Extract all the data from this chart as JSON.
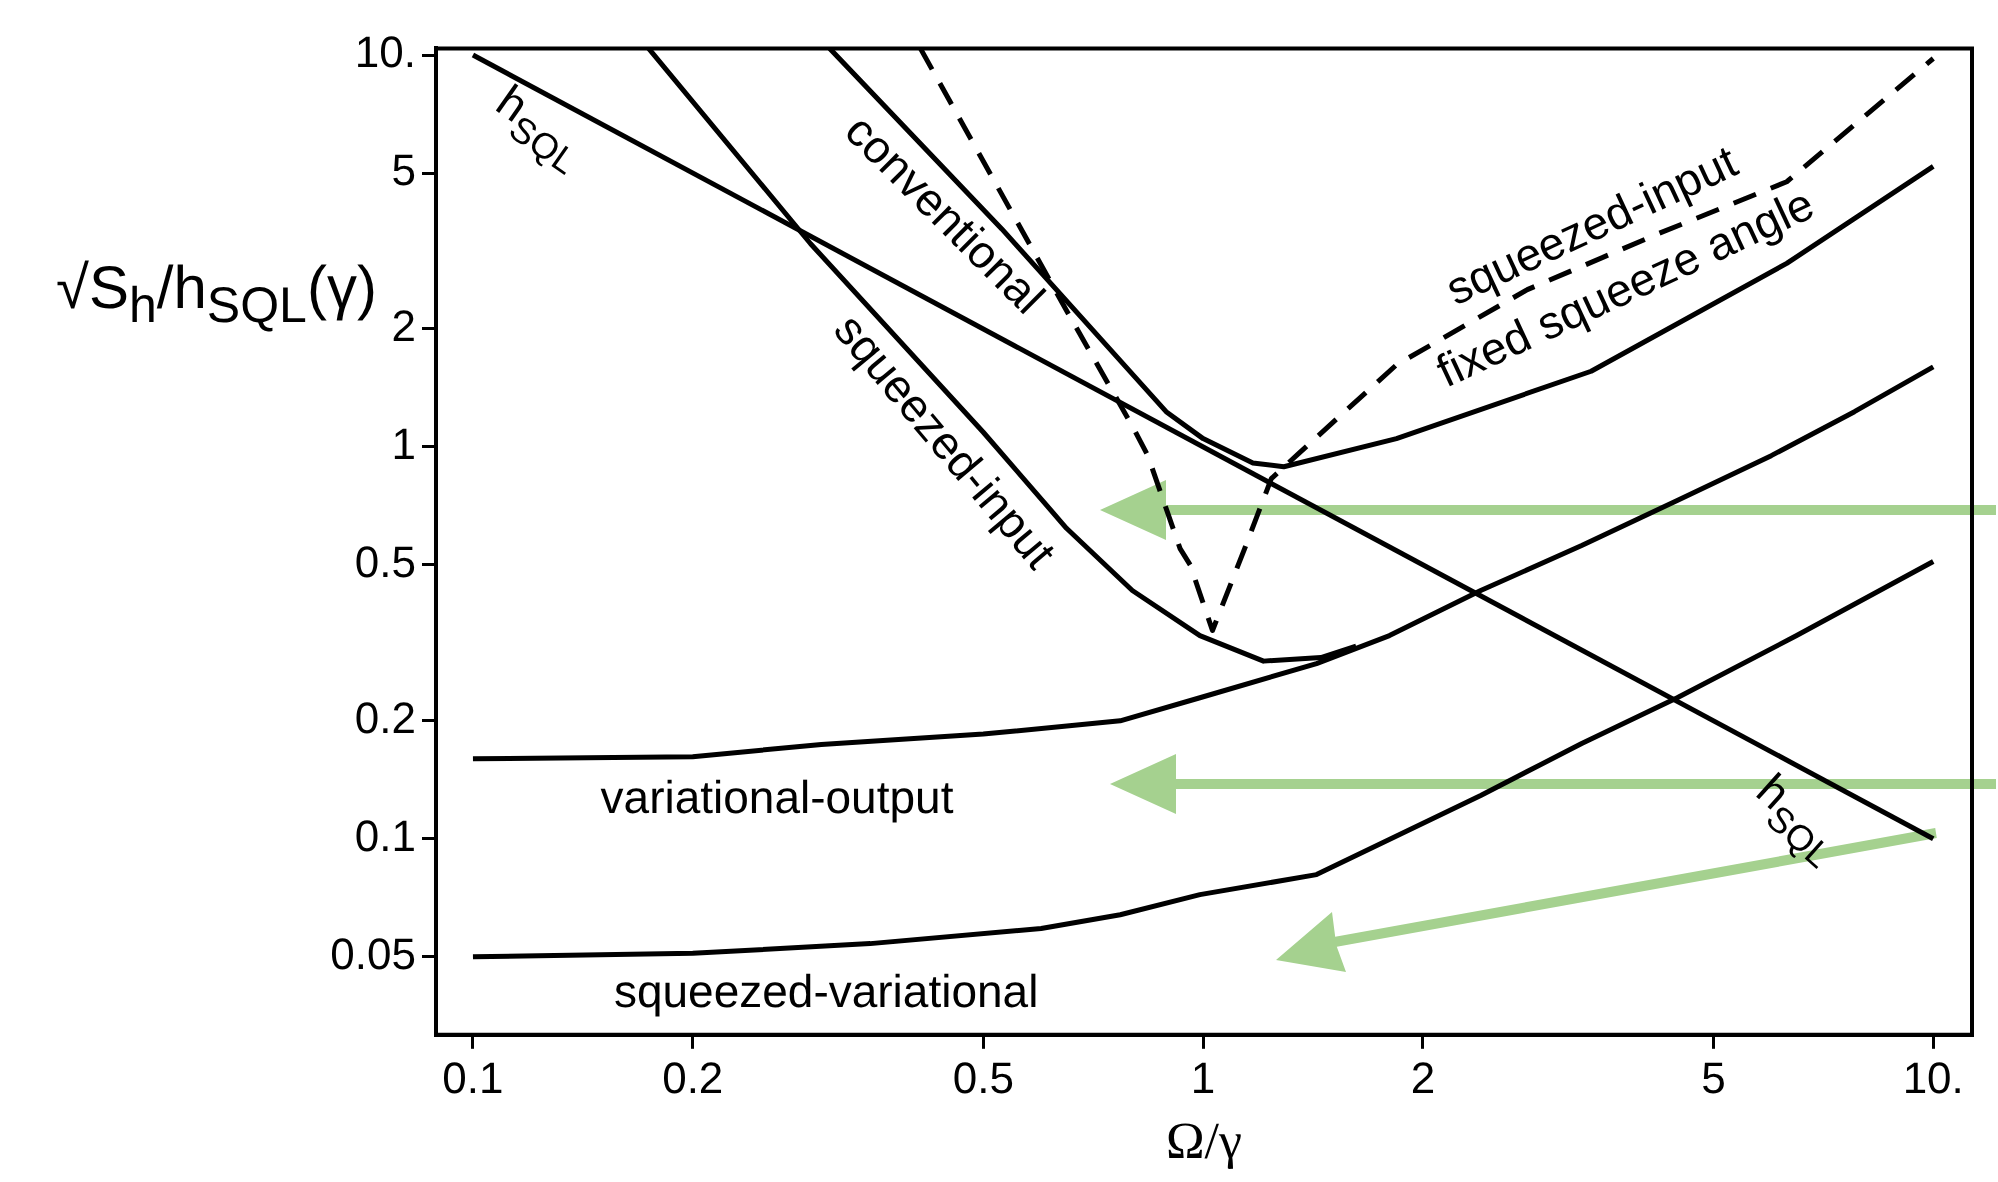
{
  "chart_data": {
    "type": "line",
    "xlabel": "Ω/γ",
    "ylabel": "√S$_{h}$/h$_{SQL}$(γ)",
    "log": "xy",
    "marker": "none",
    "xlim": [
      0.089,
      11.3
    ],
    "ylim": [
      0.0316,
      10.4
    ],
    "xticks": [
      0.1,
      0.2,
      0.5,
      1,
      2,
      5,
      {
        "value": 10,
        "label": "10."
      }
    ],
    "yticks": [
      0.05,
      0.1,
      0.2,
      0.5,
      1,
      2,
      5,
      {
        "value": 10,
        "label": "10."
      }
    ],
    "series": [
      {
        "color": "#000000",
        "line_style": "solid",
        "x": [
          0.1,
          10
        ],
        "values": [
          10,
          0.1
        ]
      },
      {
        "color": "#000000",
        "line_style": "solid",
        "x": [
          0.308,
          0.53,
          0.89,
          1.0,
          1.17,
          1.29,
          1.84,
          3.4,
          6.3,
          10
        ],
        "values": [
          10.4,
          3.6,
          1.23,
          1.05,
          0.91,
          0.89,
          1.05,
          1.56,
          2.94,
          5.2
        ]
      },
      {
        "color": "#000000",
        "line_style": "dashed",
        "x": [
          0.41,
          0.65,
          0.8,
          0.84,
          0.93,
          0.96,
          1.03,
          1.14,
          1.24,
          1.35,
          1.84,
          2.78,
          4.2,
          6.3,
          10
        ],
        "values": [
          10.4,
          2.23,
          1.13,
          0.95,
          0.55,
          0.5,
          0.34,
          0.55,
          0.83,
          0.96,
          1.62,
          2.52,
          3.5,
          4.75,
          9.8
        ]
      },
      {
        "color": "#000000",
        "line_style": "solid",
        "x": [
          0.174,
          0.29,
          0.5,
          0.65,
          0.8,
          0.99,
          1.21,
          1.45,
          1.62
        ],
        "values": [
          10.4,
          3.3,
          1.09,
          0.62,
          0.43,
          0.33,
          0.284,
          0.29,
          0.31
        ]
      },
      {
        "color": "#000000",
        "line_style": "solid",
        "x": [
          0.1,
          0.2,
          0.3,
          0.5,
          0.77,
          0.99,
          1.43,
          1.8,
          2.4,
          3.3,
          4.46,
          6,
          7.8,
          10
        ],
        "values": [
          0.16,
          0.162,
          0.174,
          0.185,
          0.2,
          0.229,
          0.28,
          0.33,
          0.43,
          0.56,
          0.73,
          0.95,
          1.23,
          1.6
        ]
      },
      {
        "color": "#000000",
        "line_style": "solid",
        "x": [
          0.1,
          0.2,
          0.35,
          0.6,
          0.77,
          0.99,
          1.43,
          2.4,
          3.3,
          4.46,
          6.5,
          10
        ],
        "values": [
          0.05,
          0.051,
          0.054,
          0.059,
          0.064,
          0.072,
          0.081,
          0.129,
          0.175,
          0.229,
          0.33,
          0.51
        ]
      }
    ],
    "annotations": [
      "h$_{SQL}$",
      "conventional",
      "squeezed-input",
      "squeezed-input",
      "fixed squeeze angle",
      "variational-output",
      "squeezed-variational",
      "h$_{SQL}$"
    ]
  }
}
